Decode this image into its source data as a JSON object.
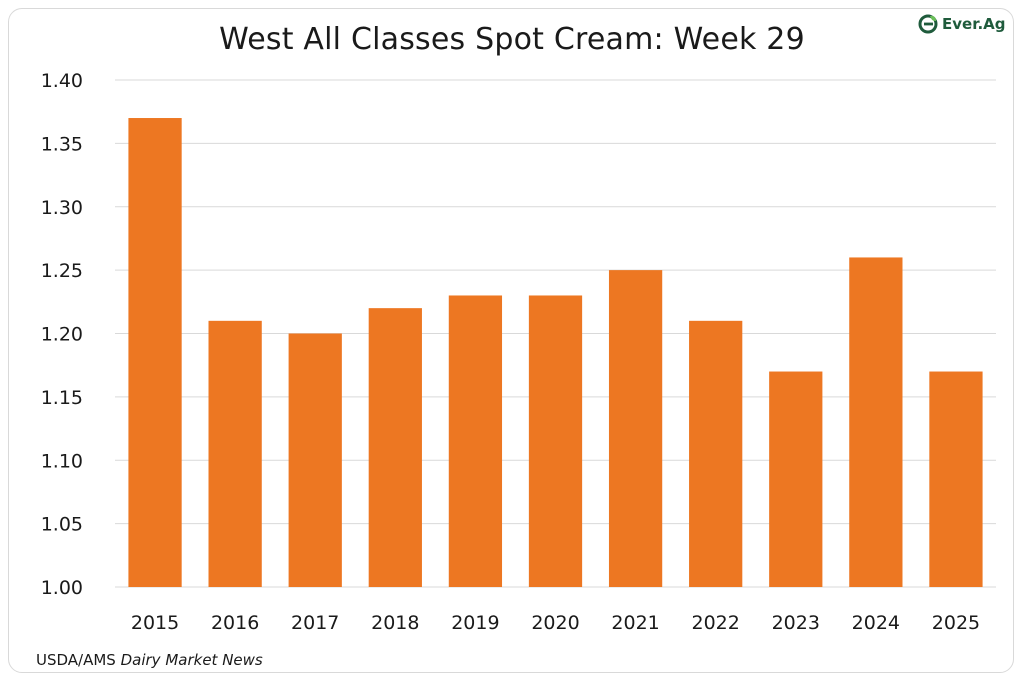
{
  "header": {
    "title": "West All Classes Spot Cream: Week 29",
    "logo_text": "Ever.Ag",
    "logo_icon": "leaf-e-logo-icon"
  },
  "footer": {
    "source_prefix": "USDA/AMS ",
    "source_italic": "Dairy Market News"
  },
  "colors": {
    "bar": "#ED7722",
    "grid": "#d9d9d9",
    "logo_green": "#1f5b3c",
    "logo_leaf": "#6bbf59"
  },
  "chart_data": {
    "type": "bar",
    "title": "West All Classes Spot Cream: Week 29",
    "xlabel": "",
    "ylabel": "",
    "categories": [
      "2015",
      "2016",
      "2017",
      "2018",
      "2019",
      "2020",
      "2021",
      "2022",
      "2023",
      "2024",
      "2025"
    ],
    "values": [
      1.37,
      1.21,
      1.2,
      1.22,
      1.23,
      1.23,
      1.25,
      1.21,
      1.17,
      1.26,
      1.17
    ],
    "ylim": [
      1.0,
      1.4
    ],
    "yticks": [
      "1.00",
      "1.05",
      "1.10",
      "1.15",
      "1.20",
      "1.25",
      "1.30",
      "1.35",
      "1.40"
    ],
    "grid": true,
    "legend": "none"
  }
}
